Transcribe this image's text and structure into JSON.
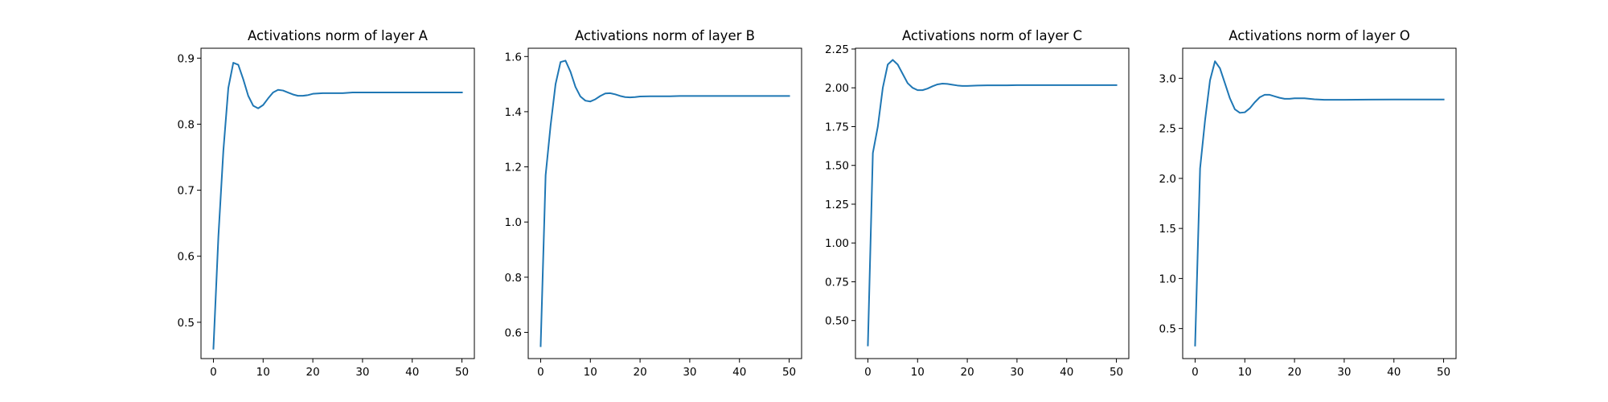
{
  "chart_data": [
    {
      "type": "line",
      "title": "Activations norm of layer A",
      "xlim": [
        -2.5,
        52.5
      ],
      "ylim": [
        0.445,
        0.915
      ],
      "xticks": [
        0,
        10,
        20,
        30,
        40,
        50
      ],
      "xtick_labels": [
        "0",
        "10",
        "20",
        "30",
        "40",
        "50"
      ],
      "yticks": [
        0.5,
        0.6,
        0.7,
        0.8,
        0.9
      ],
      "ytick_labels": [
        "0.5",
        "0.6",
        "0.7",
        "0.8",
        "0.9"
      ],
      "series": [
        {
          "color": "#1f77b4",
          "x": [
            0,
            1,
            2,
            3,
            4,
            5,
            6,
            7,
            8,
            9,
            10,
            11,
            12,
            13,
            14,
            15,
            16,
            17,
            18,
            19,
            20,
            22,
            24,
            26,
            28,
            30,
            35,
            40,
            45,
            50
          ],
          "y": [
            0.46,
            0.63,
            0.76,
            0.855,
            0.893,
            0.89,
            0.868,
            0.843,
            0.828,
            0.824,
            0.829,
            0.839,
            0.848,
            0.852,
            0.851,
            0.848,
            0.845,
            0.843,
            0.843,
            0.844,
            0.846,
            0.847,
            0.847,
            0.847,
            0.848,
            0.848,
            0.848,
            0.848,
            0.848,
            0.848
          ]
        }
      ]
    },
    {
      "type": "line",
      "title": "Activations norm of layer B",
      "xlim": [
        -2.5,
        52.5
      ],
      "ylim": [
        0.505,
        1.63
      ],
      "xticks": [
        0,
        10,
        20,
        30,
        40,
        50
      ],
      "xtick_labels": [
        "0",
        "10",
        "20",
        "30",
        "40",
        "50"
      ],
      "yticks": [
        0.6,
        0.8,
        1.0,
        1.2,
        1.4,
        1.6
      ],
      "ytick_labels": [
        "0.6",
        "0.8",
        "1.0",
        "1.2",
        "1.4",
        "1.6"
      ],
      "series": [
        {
          "color": "#1f77b4",
          "x": [
            0,
            1,
            2,
            3,
            4,
            5,
            6,
            7,
            8,
            9,
            10,
            11,
            12,
            13,
            14,
            15,
            16,
            17,
            18,
            19,
            20,
            22,
            24,
            26,
            28,
            30,
            35,
            40,
            45,
            50
          ],
          "y": [
            0.55,
            1.17,
            1.35,
            1.5,
            1.58,
            1.585,
            1.545,
            1.49,
            1.455,
            1.44,
            1.437,
            1.445,
            1.457,
            1.466,
            1.467,
            1.463,
            1.457,
            1.453,
            1.452,
            1.453,
            1.455,
            1.456,
            1.456,
            1.456,
            1.457,
            1.457,
            1.457,
            1.457,
            1.457,
            1.457
          ]
        }
      ]
    },
    {
      "type": "line",
      "title": "Activations norm of layer C",
      "xlim": [
        -2.5,
        52.5
      ],
      "ylim": [
        0.255,
        2.255
      ],
      "xticks": [
        0,
        10,
        20,
        30,
        40,
        50
      ],
      "xtick_labels": [
        "0",
        "10",
        "20",
        "30",
        "40",
        "50"
      ],
      "yticks": [
        0.5,
        0.75,
        1.0,
        1.25,
        1.5,
        1.75,
        2.0,
        2.25
      ],
      "ytick_labels": [
        "0.50",
        "0.75",
        "1.00",
        "1.25",
        "1.50",
        "1.75",
        "2.00",
        "2.25"
      ],
      "series": [
        {
          "color": "#1f77b4",
          "x": [
            0,
            1,
            2,
            3,
            4,
            5,
            6,
            7,
            8,
            9,
            10,
            11,
            12,
            13,
            14,
            15,
            16,
            17,
            18,
            19,
            20,
            22,
            24,
            26,
            28,
            30,
            35,
            40,
            45,
            50
          ],
          "y": [
            0.34,
            1.58,
            1.75,
            2.0,
            2.15,
            2.18,
            2.15,
            2.09,
            2.03,
            2.0,
            1.985,
            1.985,
            1.995,
            2.01,
            2.022,
            2.027,
            2.025,
            2.02,
            2.015,
            2.012,
            2.012,
            2.015,
            2.016,
            2.016,
            2.016,
            2.017,
            2.017,
            2.017,
            2.017,
            2.017
          ]
        }
      ]
    },
    {
      "type": "line",
      "title": "Activations norm of layer O",
      "xlim": [
        -2.5,
        52.5
      ],
      "ylim": [
        0.2,
        3.3
      ],
      "xticks": [
        0,
        10,
        20,
        30,
        40,
        50
      ],
      "xtick_labels": [
        "0",
        "10",
        "20",
        "30",
        "40",
        "50"
      ],
      "yticks": [
        0.5,
        1.0,
        1.5,
        2.0,
        2.5,
        3.0
      ],
      "ytick_labels": [
        "0.5",
        "1.0",
        "1.5",
        "2.0",
        "2.5",
        "3.0"
      ],
      "series": [
        {
          "color": "#1f77b4",
          "x": [
            0,
            1,
            2,
            3,
            4,
            5,
            6,
            7,
            8,
            9,
            10,
            11,
            12,
            13,
            14,
            15,
            16,
            17,
            18,
            19,
            20,
            22,
            24,
            26,
            28,
            30,
            35,
            40,
            45,
            50
          ],
          "y": [
            0.33,
            2.1,
            2.58,
            2.98,
            3.17,
            3.1,
            2.95,
            2.8,
            2.69,
            2.655,
            2.66,
            2.7,
            2.76,
            2.81,
            2.835,
            2.835,
            2.82,
            2.805,
            2.795,
            2.795,
            2.8,
            2.8,
            2.79,
            2.785,
            2.785,
            2.785,
            2.787,
            2.788,
            2.788,
            2.788
          ]
        }
      ]
    }
  ]
}
